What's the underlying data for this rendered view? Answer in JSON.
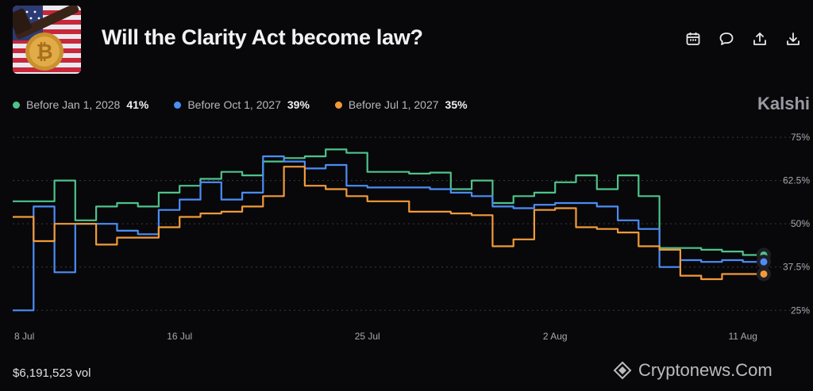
{
  "header": {
    "title": "Will the Clarity Act become law?",
    "thumbnail_icon": "bitcoin-flag-gavel-image"
  },
  "toolbar": {
    "icons": [
      "calendar-icon",
      "comment-icon",
      "share-icon",
      "download-icon"
    ]
  },
  "legend": [
    {
      "label": "Before Jan 1, 2028",
      "value": "41%",
      "color": "#4ec38a"
    },
    {
      "label": "Before Oct 1, 2027",
      "value": "39%",
      "color": "#4c8df6"
    },
    {
      "label": "Before Jul 1, 2027",
      "value": "35%",
      "color": "#f29a38"
    }
  ],
  "brand": "Kalshi",
  "footer": {
    "volume": "$6,191,523 vol",
    "watermark": "Cryptonews.Com"
  },
  "chart_data": {
    "type": "line",
    "step": true,
    "ylim": [
      23,
      78
    ],
    "yticks": [
      75,
      62.5,
      50,
      37.5,
      25
    ],
    "ytick_labels": [
      "75%",
      "62.5%",
      "50%",
      "37.5%",
      "25%"
    ],
    "xlim": [
      0,
      36
    ],
    "xticks": [
      0,
      8,
      17,
      26,
      35
    ],
    "xtick_labels": [
      "8 Jul",
      "16 Jul",
      "25 Jul",
      "2 Aug",
      "11 Aug"
    ],
    "grid": true,
    "legend_position": "top-left",
    "series": [
      {
        "name": "Before Jan 1, 2028",
        "color": "#4ec38a",
        "points": [
          [
            0,
            56.5
          ],
          [
            2,
            56.5
          ],
          [
            2,
            62.5
          ],
          [
            3,
            62.5
          ],
          [
            3,
            51
          ],
          [
            4,
            51
          ],
          [
            4,
            55
          ],
          [
            5,
            55
          ],
          [
            5,
            56
          ],
          [
            6,
            56
          ],
          [
            6,
            55
          ],
          [
            7,
            55
          ],
          [
            7,
            59
          ],
          [
            8,
            59
          ],
          [
            8,
            61
          ],
          [
            9,
            61
          ],
          [
            9,
            63
          ],
          [
            10,
            63
          ],
          [
            10,
            65
          ],
          [
            11,
            65
          ],
          [
            11,
            64
          ],
          [
            12,
            64
          ],
          [
            12,
            68
          ],
          [
            13,
            68
          ],
          [
            13,
            69
          ],
          [
            14,
            69
          ],
          [
            14,
            69.5
          ],
          [
            15,
            69.5
          ],
          [
            15,
            71.5
          ],
          [
            16,
            71.5
          ],
          [
            16,
            70.5
          ],
          [
            17,
            70.5
          ],
          [
            17,
            65
          ],
          [
            19,
            65
          ],
          [
            19,
            64.5
          ],
          [
            20,
            64.5
          ],
          [
            20,
            64.8
          ],
          [
            21,
            64.8
          ],
          [
            21,
            60
          ],
          [
            22,
            60
          ],
          [
            22,
            62.5
          ],
          [
            23,
            62.5
          ],
          [
            23,
            56
          ],
          [
            24,
            56
          ],
          [
            24,
            58
          ],
          [
            25,
            58
          ],
          [
            25,
            59
          ],
          [
            26,
            59
          ],
          [
            26,
            62
          ],
          [
            27,
            62
          ],
          [
            27,
            64
          ],
          [
            28,
            64
          ],
          [
            28,
            60
          ],
          [
            29,
            60
          ],
          [
            29,
            64
          ],
          [
            30,
            64
          ],
          [
            30,
            58
          ],
          [
            31,
            58
          ],
          [
            31,
            43
          ],
          [
            33,
            43
          ],
          [
            33,
            42.5
          ],
          [
            34,
            42.5
          ],
          [
            34,
            42
          ],
          [
            35,
            42
          ],
          [
            35,
            41
          ],
          [
            36,
            41
          ]
        ]
      },
      {
        "name": "Before Oct 1, 2027",
        "color": "#4c8df6",
        "points": [
          [
            0,
            25
          ],
          [
            1,
            25
          ],
          [
            1,
            55
          ],
          [
            2,
            55
          ],
          [
            2,
            36
          ],
          [
            3,
            36
          ],
          [
            3,
            50
          ],
          [
            5,
            50
          ],
          [
            5,
            48
          ],
          [
            6,
            48
          ],
          [
            6,
            47
          ],
          [
            7,
            47
          ],
          [
            7,
            54
          ],
          [
            8,
            54
          ],
          [
            8,
            57
          ],
          [
            9,
            57
          ],
          [
            9,
            62
          ],
          [
            10,
            62
          ],
          [
            10,
            57
          ],
          [
            11,
            57
          ],
          [
            11,
            59
          ],
          [
            12,
            59
          ],
          [
            12,
            69.5
          ],
          [
            13,
            69.5
          ],
          [
            13,
            68
          ],
          [
            14,
            68
          ],
          [
            14,
            66
          ],
          [
            15,
            66
          ],
          [
            15,
            67
          ],
          [
            16,
            67
          ],
          [
            16,
            61
          ],
          [
            17,
            61
          ],
          [
            17,
            60.5
          ],
          [
            20,
            60.5
          ],
          [
            20,
            60
          ],
          [
            21,
            60
          ],
          [
            21,
            59
          ],
          [
            22,
            59
          ],
          [
            22,
            58
          ],
          [
            23,
            58
          ],
          [
            23,
            55
          ],
          [
            24,
            55
          ],
          [
            24,
            54.5
          ],
          [
            25,
            54.5
          ],
          [
            25,
            55.5
          ],
          [
            26,
            55.5
          ],
          [
            26,
            56
          ],
          [
            28,
            56
          ],
          [
            28,
            55
          ],
          [
            29,
            55
          ],
          [
            29,
            51
          ],
          [
            30,
            51
          ],
          [
            30,
            48.5
          ],
          [
            31,
            48.5
          ],
          [
            31,
            37.5
          ],
          [
            32,
            37.5
          ],
          [
            32,
            39.5
          ],
          [
            33,
            39.5
          ],
          [
            33,
            39
          ],
          [
            34,
            39
          ],
          [
            34,
            39.5
          ],
          [
            35,
            39.5
          ],
          [
            35,
            39
          ],
          [
            36,
            39
          ]
        ]
      },
      {
        "name": "Before Jul 1, 2027",
        "color": "#f29a38",
        "points": [
          [
            0,
            52
          ],
          [
            1,
            52
          ],
          [
            1,
            45
          ],
          [
            2,
            45
          ],
          [
            2,
            50
          ],
          [
            4,
            50
          ],
          [
            4,
            44
          ],
          [
            5,
            44
          ],
          [
            5,
            46
          ],
          [
            7,
            46
          ],
          [
            7,
            49
          ],
          [
            8,
            49
          ],
          [
            8,
            52
          ],
          [
            9,
            52
          ],
          [
            9,
            53
          ],
          [
            10,
            53
          ],
          [
            10,
            53.5
          ],
          [
            11,
            53.5
          ],
          [
            11,
            55
          ],
          [
            12,
            55
          ],
          [
            12,
            58
          ],
          [
            13,
            58
          ],
          [
            13,
            66.5
          ],
          [
            14,
            66.5
          ],
          [
            14,
            61
          ],
          [
            15,
            61
          ],
          [
            15,
            60
          ],
          [
            16,
            60
          ],
          [
            16,
            58
          ],
          [
            17,
            58
          ],
          [
            17,
            56.5
          ],
          [
            19,
            56.5
          ],
          [
            19,
            53.5
          ],
          [
            21,
            53.5
          ],
          [
            21,
            53
          ],
          [
            22,
            53
          ],
          [
            22,
            52.5
          ],
          [
            23,
            52.5
          ],
          [
            23,
            43.5
          ],
          [
            24,
            43.5
          ],
          [
            24,
            45.5
          ],
          [
            25,
            45.5
          ],
          [
            25,
            54
          ],
          [
            26,
            54
          ],
          [
            26,
            54.5
          ],
          [
            27,
            54.5
          ],
          [
            27,
            49
          ],
          [
            28,
            49
          ],
          [
            28,
            48.5
          ],
          [
            29,
            48.5
          ],
          [
            29,
            47.5
          ],
          [
            30,
            47.5
          ],
          [
            30,
            43.5
          ],
          [
            31,
            43.5
          ],
          [
            31,
            42.5
          ],
          [
            32,
            42.5
          ],
          [
            32,
            35
          ],
          [
            33,
            35
          ],
          [
            33,
            34
          ],
          [
            34,
            34
          ],
          [
            34,
            35.5
          ],
          [
            36,
            35.5
          ]
        ]
      }
    ]
  }
}
